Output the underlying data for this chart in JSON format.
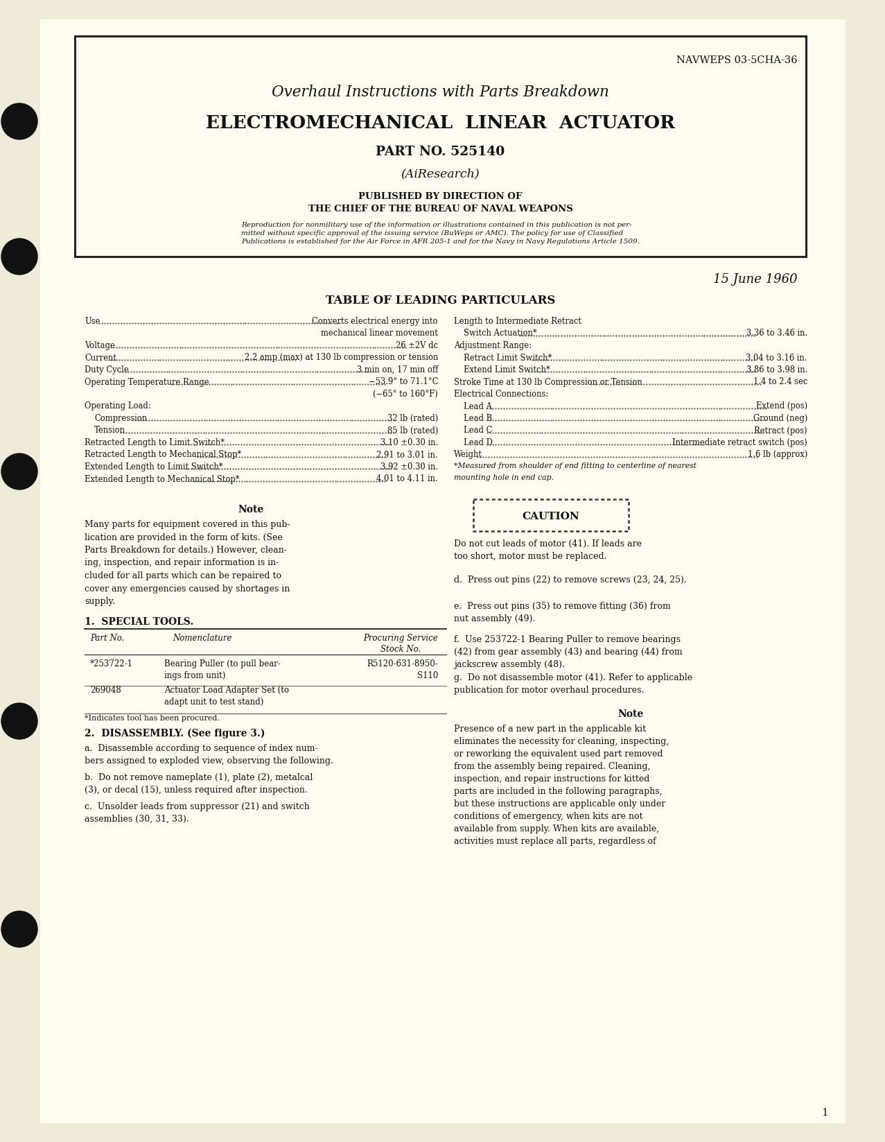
{
  "bg_color": "#f0ead8",
  "page_bg": "#fefcf0",
  "doc_number": "NAVWEPS 03-5CHA-36",
  "title1": "Overhaul Instructions with Parts Breakdown",
  "title2": "ELECTROMECHANICAL  LINEAR  ACTUATOR",
  "title3": "PART NO. 525140",
  "title4": "(AiResearch)",
  "published_line1": "PUBLISHED BY DIRECTION OF",
  "published_line2": "THE CHIEF OF THE BUREAU OF NAVAL WEAPONS",
  "legal_text": "Reproduction for nonmilitary use of the information or illustrations contained in this publication is not per-\nmitted without specific approval of the issuing service (BuWeps or AMC). The policy for use of Classified\nPublications is established for the Air Force in AFR 205-1 and for the Navy in Navy Regulations Article 1509.",
  "date": "15 June 1960",
  "table_title": "TABLE OF LEADING PARTICULARS",
  "left_col": [
    [
      "Use",
      "Converts electrical energy into\nmechanical linear movement"
    ],
    [
      "Voltage",
      "26 ±2V dc"
    ],
    [
      "Current",
      "2.2 amp (max) at 130 lb compression or tension"
    ],
    [
      "Duty Cycle",
      "3 min on, 17 min off"
    ],
    [
      "Operating Temperature Range",
      "−53.9° to 71.1°C\n(−65° to 160°F)"
    ],
    [
      "Operating Load:",
      ""
    ],
    [
      "  Compression",
      "32 lb (rated)"
    ],
    [
      "  Tension",
      "85 lb (rated)"
    ],
    [
      "Retracted Length to Limit Switch*",
      "3.10 ±0.30 in."
    ],
    [
      "Retracted Length to Mechanical Stop*",
      "2.91 to 3.01 in."
    ],
    [
      "Extended Length to Limit Switch*",
      "3.92 ±0.30 in."
    ],
    [
      "Extended Length to Mechanical Stop*",
      "4.01 to 4.11 in."
    ]
  ],
  "right_col": [
    [
      "Length to Intermediate Retract",
      ""
    ],
    [
      "  Switch Actuation*",
      "3.36 to 3.46 in."
    ],
    [
      "Adjustment Range:",
      ""
    ],
    [
      "  Retract Limit Switch*",
      "3.04 to 3.16 in."
    ],
    [
      "  Extend Limit Switch*",
      "3.86 to 3.98 in."
    ],
    [
      "Stroke Time at 130 lb Compression or Tension",
      "1.4 to 2.4 sec"
    ],
    [
      "Electrical Connections:",
      ""
    ],
    [
      "  Lead A",
      "Extend (pos)"
    ],
    [
      "  Lead B",
      "Ground (neg)"
    ],
    [
      "  Lead C",
      "Retract (pos)"
    ],
    [
      "  Lead D",
      "Intermediate retract switch (pos)"
    ],
    [
      "Weight",
      "1.6 lb (approx)"
    ],
    [
      "*Measured from shoulder of end fitting to centerline of nearest\nmounting hole in end cap.",
      ""
    ]
  ],
  "note_text": "Many parts for equipment covered in this pub-\nlication are provided in the form of kits. (See\nParts Breakdown for details.) However, clean-\ning, inspection, and repair information is in-\ncluded for all parts which can be repaired to\ncover any emergencies caused by shortages in\nsupply.",
  "caution_text": "Do not cut leads of motor (41). If leads are\ntoo short, motor must be replaced.",
  "section1_title": "1.  SPECIAL TOOLS.",
  "table_rows": [
    [
      "*253722-1",
      "Bearing Puller (to pull bear-\nings from unit)",
      "R5120-631-8950-\nS110"
    ],
    [
      "269048",
      "Actuator Load Adapter Set (to\nadapt unit to test stand)",
      ""
    ]
  ],
  "table_footnote": "*Indicates tool has been procured.",
  "section2_title": "2.  DISASSEMBLY. (See figure 3.)",
  "disassembly_a": "a.  Disassemble according to sequence of index num-\nbers assigned to exploded view, observing the following.",
  "disassembly_b": "b.  Do not remove nameplate (1), plate (2), metalcal\n(3), or decal (15), unless required after inspection.",
  "disassembly_c": "c.  Unsolder leads from suppressor (21) and switch\nassemblies (30, 31, 33).",
  "right_text_d": "d.  Press out pins (22) to remove screws (23, 24, 25).",
  "right_text_e": "e.  Press out pins (35) to remove fitting (36) from\nnut assembly (49).",
  "right_text_f": "f.  Use 253722-1 Bearing Puller to remove bearings\n(42) from gear assembly (43) and bearing (44) from\njackscrew assembly (48).",
  "right_text_g": "g.  Do not disassemble motor (41). Refer to applicable\npublication for motor overhaul procedures.",
  "note2_text": "Presence of a new part in the applicable kit\neliminates the necessity for cleaning, inspecting,\nor reworking the equivalent used part removed\nfrom the assembly being repaired. Cleaning,\ninspection, and repair instructions for kitted\nparts are included in the following paragraphs,\nbut these instructions are applicable only under\nconditions of emergency, when kits are not\navailable from supply. When kits are available,\nactivities must replace all parts, regardless of",
  "page_number": "1"
}
